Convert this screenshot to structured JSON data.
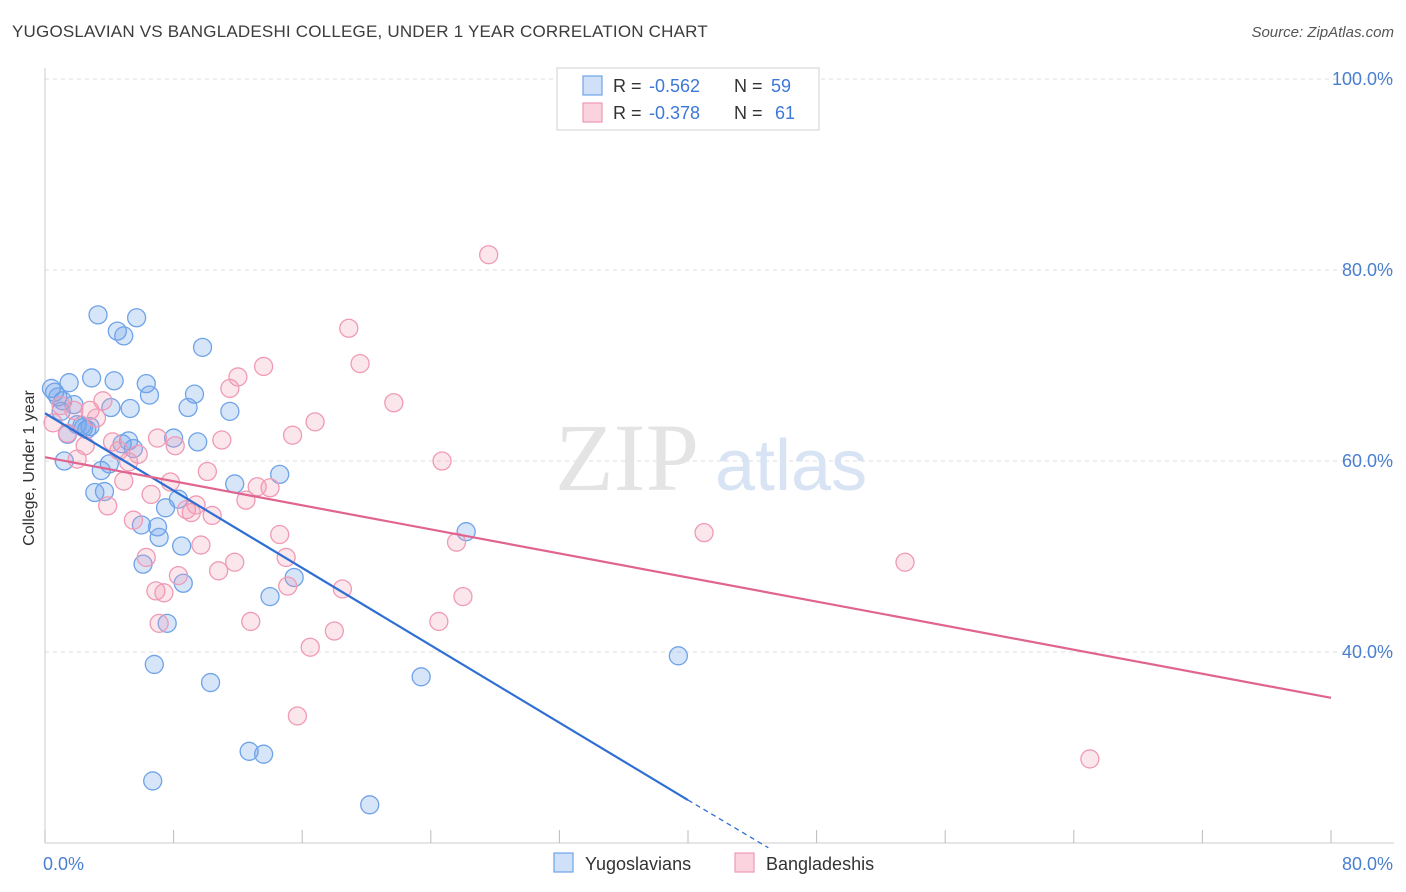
{
  "title": "YUGOSLAVIAN VS BANGLADESHI COLLEGE, UNDER 1 YEAR CORRELATION CHART",
  "source": "Source: ZipAtlas.com",
  "watermark": {
    "zip": "ZIP",
    "atlas": "atlas"
  },
  "legend": {
    "rows": [
      {
        "r_label": "R =",
        "r_value": "-0.562",
        "n_label": "N =",
        "n_value": "59",
        "color": "#6fa3e8"
      },
      {
        "r_label": "R =",
        "r_value": "-0.378",
        "n_label": "N =",
        "n_value": "61",
        "color": "#f09ab5"
      }
    ]
  },
  "colors": {
    "blue": "#6fa3e8",
    "blue_line": "#2f6fd3",
    "pink": "#f09ab5",
    "pink_line": "#e0648f",
    "axis_text": "#4a7fd0"
  },
  "chart_data": {
    "type": "scatter",
    "title": "YUGOSLAVIAN VS BANGLADESHI COLLEGE, UNDER 1 YEAR CORRELATION CHART",
    "xlabel": "",
    "ylabel": "College, Under 1 year",
    "xlim": [
      0,
      80
    ],
    "ylim": [
      20,
      100
    ],
    "x_tick_labels": [
      "0.0%",
      "80.0%"
    ],
    "y_tick_labels": [
      "100.0%",
      "80.0%",
      "60.0%",
      "40.0%"
    ],
    "y_ticks": [
      100,
      80,
      60,
      40
    ],
    "grid": true,
    "legend_position": "bottom",
    "series": [
      {
        "name": "Yugoslavians",
        "color": "#6fa3e8",
        "trend": {
          "x0": 0,
          "y0": 65.0,
          "x1": 40,
          "y1": 24.5,
          "dash_to_x": 45,
          "dash_to_y": 19.5
        },
        "points": [
          [
            0.4,
            67.6
          ],
          [
            0.6,
            67.2
          ],
          [
            0.8,
            66.7
          ],
          [
            1.0,
            65.2
          ],
          [
            1.1,
            66.3
          ],
          [
            1.4,
            62.8
          ],
          [
            1.2,
            60.0
          ],
          [
            1.5,
            68.2
          ],
          [
            1.8,
            65.9
          ],
          [
            2.0,
            63.8
          ],
          [
            2.3,
            63.7
          ],
          [
            2.6,
            63.3
          ],
          [
            2.8,
            63.6
          ],
          [
            2.9,
            68.7
          ],
          [
            3.1,
            56.7
          ],
          [
            3.3,
            75.3
          ],
          [
            3.5,
            59.0
          ],
          [
            3.7,
            56.8
          ],
          [
            4.0,
            59.7
          ],
          [
            4.1,
            65.6
          ],
          [
            4.3,
            68.4
          ],
          [
            4.5,
            73.6
          ],
          [
            4.8,
            61.8
          ],
          [
            4.9,
            73.1
          ],
          [
            5.2,
            62.1
          ],
          [
            5.3,
            65.5
          ],
          [
            5.5,
            61.3
          ],
          [
            5.7,
            75.0
          ],
          [
            6.0,
            53.3
          ],
          [
            6.1,
            49.2
          ],
          [
            6.3,
            68.1
          ],
          [
            6.5,
            66.9
          ],
          [
            6.8,
            38.7
          ],
          [
            7.0,
            53.1
          ],
          [
            7.1,
            52.0
          ],
          [
            7.5,
            55.1
          ],
          [
            7.6,
            43.0
          ],
          [
            8.0,
            62.4
          ],
          [
            8.3,
            56.0
          ],
          [
            8.5,
            51.1
          ],
          [
            8.6,
            47.2
          ],
          [
            8.9,
            65.6
          ],
          [
            9.3,
            67.0
          ],
          [
            9.5,
            62.0
          ],
          [
            9.8,
            71.9
          ],
          [
            10.3,
            36.8
          ],
          [
            11.5,
            65.2
          ],
          [
            11.8,
            57.6
          ],
          [
            12.7,
            29.6
          ],
          [
            13.6,
            29.3
          ],
          [
            14.0,
            45.8
          ],
          [
            14.6,
            58.6
          ],
          [
            15.5,
            47.8
          ],
          [
            20.2,
            24.0
          ],
          [
            23.4,
            37.4
          ],
          [
            26.2,
            52.6
          ],
          [
            39.4,
            39.6
          ],
          [
            6.7,
            26.5
          ],
          [
            2.4,
            63.5
          ]
        ]
      },
      {
        "name": "Bangladeshis",
        "color": "#f09ab5",
        "trend": {
          "x0": 0,
          "y0": 60.4,
          "x1": 80,
          "y1": 35.2
        },
        "points": [
          [
            0.5,
            64.0
          ],
          [
            1.0,
            65.8
          ],
          [
            1.4,
            62.9
          ],
          [
            1.8,
            65.3
          ],
          [
            2.0,
            60.2
          ],
          [
            2.5,
            61.6
          ],
          [
            2.8,
            65.3
          ],
          [
            3.2,
            64.5
          ],
          [
            3.6,
            66.3
          ],
          [
            3.9,
            55.3
          ],
          [
            4.2,
            62.0
          ],
          [
            4.6,
            61.1
          ],
          [
            4.9,
            57.9
          ],
          [
            5.2,
            59.9
          ],
          [
            5.5,
            53.8
          ],
          [
            5.8,
            60.7
          ],
          [
            6.3,
            49.9
          ],
          [
            6.6,
            56.5
          ],
          [
            6.9,
            46.4
          ],
          [
            7.1,
            43.0
          ],
          [
            7.4,
            46.2
          ],
          [
            7.8,
            57.8
          ],
          [
            8.1,
            61.6
          ],
          [
            8.3,
            48.0
          ],
          [
            8.8,
            54.9
          ],
          [
            9.1,
            54.6
          ],
          [
            9.4,
            55.4
          ],
          [
            9.7,
            51.2
          ],
          [
            10.1,
            58.9
          ],
          [
            10.4,
            54.3
          ],
          [
            10.8,
            48.5
          ],
          [
            11.0,
            62.2
          ],
          [
            11.5,
            67.6
          ],
          [
            11.8,
            49.4
          ],
          [
            12.0,
            68.8
          ],
          [
            12.5,
            55.9
          ],
          [
            12.8,
            43.2
          ],
          [
            13.2,
            57.3
          ],
          [
            13.6,
            69.9
          ],
          [
            14.0,
            57.2
          ],
          [
            14.6,
            52.3
          ],
          [
            15.0,
            49.9
          ],
          [
            15.1,
            46.9
          ],
          [
            15.4,
            62.7
          ],
          [
            15.7,
            33.3
          ],
          [
            16.5,
            40.5
          ],
          [
            16.8,
            64.1
          ],
          [
            18.0,
            42.2
          ],
          [
            18.5,
            46.6
          ],
          [
            18.9,
            73.9
          ],
          [
            19.6,
            70.2
          ],
          [
            21.7,
            66.1
          ],
          [
            24.5,
            43.2
          ],
          [
            24.7,
            60.0
          ],
          [
            25.6,
            51.5
          ],
          [
            26.0,
            45.8
          ],
          [
            27.6,
            81.6
          ],
          [
            41.0,
            52.5
          ],
          [
            53.5,
            49.4
          ],
          [
            65.0,
            28.8
          ],
          [
            7.0,
            62.4
          ]
        ]
      }
    ]
  }
}
